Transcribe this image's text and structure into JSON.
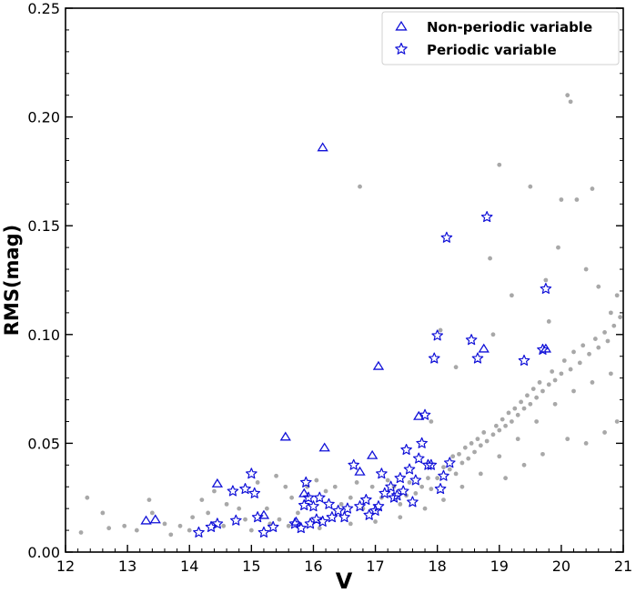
{
  "chart_data": {
    "type": "scatter",
    "xlabel": "V",
    "ylabel": "RMS(mag)",
    "xlim": [
      12,
      21
    ],
    "ylim": [
      0,
      0.25
    ],
    "x_ticks": [
      "12",
      "13",
      "14",
      "15",
      "16",
      "17",
      "18",
      "19",
      "20",
      "21"
    ],
    "y_ticks": [
      "0.00",
      "0.05",
      "0.10",
      "0.15",
      "0.20",
      "0.25"
    ],
    "legend_position": "top-right",
    "grid": false,
    "series": [
      {
        "name": "Non-periodic variable",
        "marker": "triangle",
        "color": "#1010d8",
        "points": [
          [
            13.3,
            0.0145
          ],
          [
            13.45,
            0.015
          ],
          [
            14.45,
            0.0315
          ],
          [
            15.2,
            0.017
          ],
          [
            15.55,
            0.053
          ],
          [
            15.72,
            0.014
          ],
          [
            15.85,
            0.027
          ],
          [
            16.15,
            0.186
          ],
          [
            16.18,
            0.048
          ],
          [
            16.75,
            0.037
          ],
          [
            16.95,
            0.0445
          ],
          [
            17.05,
            0.0855
          ],
          [
            17.7,
            0.0625
          ],
          [
            18.75,
            0.0935
          ],
          [
            19.75,
            0.0935
          ]
        ]
      },
      {
        "name": "Periodic variable",
        "marker": "star",
        "color": "#1010d8",
        "points": [
          [
            14.15,
            0.009
          ],
          [
            14.35,
            0.0115
          ],
          [
            14.45,
            0.013
          ],
          [
            14.7,
            0.028
          ],
          [
            14.75,
            0.0145
          ],
          [
            14.9,
            0.029
          ],
          [
            15.0,
            0.036
          ],
          [
            15.05,
            0.027
          ],
          [
            15.1,
            0.016
          ],
          [
            15.2,
            0.009
          ],
          [
            15.35,
            0.0115
          ],
          [
            15.7,
            0.013
          ],
          [
            15.8,
            0.011
          ],
          [
            15.85,
            0.0215
          ],
          [
            15.88,
            0.032
          ],
          [
            15.92,
            0.025
          ],
          [
            15.95,
            0.013
          ],
          [
            16.0,
            0.021
          ],
          [
            16.05,
            0.015
          ],
          [
            16.1,
            0.025
          ],
          [
            16.15,
            0.014
          ],
          [
            16.25,
            0.022
          ],
          [
            16.3,
            0.016
          ],
          [
            16.4,
            0.019
          ],
          [
            16.5,
            0.016
          ],
          [
            16.55,
            0.02
          ],
          [
            16.65,
            0.04
          ],
          [
            16.75,
            0.021
          ],
          [
            16.85,
            0.024
          ],
          [
            16.9,
            0.017
          ],
          [
            17.0,
            0.019
          ],
          [
            17.05,
            0.021
          ],
          [
            17.1,
            0.036
          ],
          [
            17.15,
            0.027
          ],
          [
            17.25,
            0.03
          ],
          [
            17.3,
            0.025
          ],
          [
            17.35,
            0.026
          ],
          [
            17.4,
            0.034
          ],
          [
            17.45,
            0.028
          ],
          [
            17.5,
            0.047
          ],
          [
            17.55,
            0.038
          ],
          [
            17.6,
            0.023
          ],
          [
            17.65,
            0.033
          ],
          [
            17.7,
            0.043
          ],
          [
            17.75,
            0.05
          ],
          [
            17.8,
            0.063
          ],
          [
            17.85,
            0.04
          ],
          [
            17.9,
            0.04
          ],
          [
            17.95,
            0.089
          ],
          [
            18.0,
            0.0995
          ],
          [
            18.05,
            0.029
          ],
          [
            18.1,
            0.035
          ],
          [
            18.15,
            0.1445
          ],
          [
            18.2,
            0.041
          ],
          [
            18.55,
            0.0975
          ],
          [
            18.65,
            0.089
          ],
          [
            18.8,
            0.154
          ],
          [
            19.4,
            0.088
          ],
          [
            19.7,
            0.093
          ],
          [
            19.75,
            0.121
          ]
        ]
      }
    ],
    "background_series": {
      "name": "",
      "color": "#a8a8a8",
      "marker": "dot",
      "points": [
        [
          12.25,
          0.009
        ],
        [
          12.35,
          0.025
        ],
        [
          12.6,
          0.018
        ],
        [
          12.7,
          0.011
        ],
        [
          12.95,
          0.012
        ],
        [
          13.15,
          0.01
        ],
        [
          13.35,
          0.024
        ],
        [
          13.4,
          0.018
        ],
        [
          13.6,
          0.013
        ],
        [
          13.7,
          0.008
        ],
        [
          13.85,
          0.012
        ],
        [
          14.0,
          0.01
        ],
        [
          14.05,
          0.016
        ],
        [
          14.2,
          0.024
        ],
        [
          14.3,
          0.018
        ],
        [
          14.4,
          0.028
        ],
        [
          14.55,
          0.012
        ],
        [
          14.6,
          0.022
        ],
        [
          14.8,
          0.02
        ],
        [
          14.9,
          0.015
        ],
        [
          15.0,
          0.01
        ],
        [
          15.1,
          0.032
        ],
        [
          15.25,
          0.02
        ],
        [
          15.4,
          0.035
        ],
        [
          15.45,
          0.015
        ],
        [
          15.55,
          0.03
        ],
        [
          15.65,
          0.025
        ],
        [
          15.75,
          0.018
        ],
        [
          15.9,
          0.03
        ],
        [
          16.05,
          0.033
        ],
        [
          16.2,
          0.028
        ],
        [
          16.35,
          0.03
        ],
        [
          16.45,
          0.022
        ],
        [
          16.6,
          0.025
        ],
        [
          16.7,
          0.032
        ],
        [
          16.75,
          0.168
        ],
        [
          16.8,
          0.02
        ],
        [
          16.95,
          0.03
        ],
        [
          17.1,
          0.025
        ],
        [
          17.2,
          0.033
        ],
        [
          17.3,
          0.03
        ],
        [
          17.4,
          0.022
        ],
        [
          17.5,
          0.026
        ],
        [
          17.55,
          0.032
        ],
        [
          17.65,
          0.027
        ],
        [
          17.75,
          0.03
        ],
        [
          17.85,
          0.034
        ],
        [
          17.9,
          0.029
        ],
        [
          18.0,
          0.034
        ],
        [
          18.05,
          0.102
        ],
        [
          18.1,
          0.039
        ],
        [
          18.2,
          0.038
        ],
        [
          18.25,
          0.044
        ],
        [
          18.3,
          0.036
        ],
        [
          18.35,
          0.045
        ],
        [
          18.4,
          0.041
        ],
        [
          18.45,
          0.048
        ],
        [
          18.5,
          0.043
        ],
        [
          18.55,
          0.05
        ],
        [
          18.6,
          0.046
        ],
        [
          18.65,
          0.052
        ],
        [
          18.7,
          0.049
        ],
        [
          18.75,
          0.055
        ],
        [
          18.8,
          0.051
        ],
        [
          18.85,
          0.135
        ],
        [
          18.9,
          0.054
        ],
        [
          18.95,
          0.058
        ],
        [
          19.0,
          0.178
        ],
        [
          19.0,
          0.056
        ],
        [
          19.05,
          0.061
        ],
        [
          19.1,
          0.058
        ],
        [
          19.15,
          0.064
        ],
        [
          19.2,
          0.06
        ],
        [
          19.25,
          0.066
        ],
        [
          19.3,
          0.063
        ],
        [
          19.35,
          0.069
        ],
        [
          19.4,
          0.066
        ],
        [
          19.45,
          0.072
        ],
        [
          19.5,
          0.168
        ],
        [
          19.5,
          0.068
        ],
        [
          19.55,
          0.075
        ],
        [
          19.6,
          0.071
        ],
        [
          19.65,
          0.078
        ],
        [
          19.7,
          0.074
        ],
        [
          19.75,
          0.125
        ],
        [
          19.8,
          0.077
        ],
        [
          19.85,
          0.083
        ],
        [
          19.9,
          0.079
        ],
        [
          19.95,
          0.14
        ],
        [
          20.0,
          0.082
        ],
        [
          20.0,
          0.162
        ],
        [
          20.05,
          0.088
        ],
        [
          20.1,
          0.21
        ],
        [
          20.15,
          0.084
        ],
        [
          20.15,
          0.207
        ],
        [
          20.2,
          0.092
        ],
        [
          20.25,
          0.162
        ],
        [
          20.3,
          0.087
        ],
        [
          20.35,
          0.095
        ],
        [
          20.4,
          0.13
        ],
        [
          20.45,
          0.091
        ],
        [
          20.5,
          0.167
        ],
        [
          20.55,
          0.098
        ],
        [
          20.6,
          0.094
        ],
        [
          20.7,
          0.101
        ],
        [
          20.75,
          0.097
        ],
        [
          20.8,
          0.11
        ],
        [
          20.85,
          0.104
        ],
        [
          20.9,
          0.118
        ],
        [
          20.95,
          0.108
        ],
        [
          15.3,
          0.013
        ],
        [
          15.6,
          0.012
        ],
        [
          16.1,
          0.011
        ],
        [
          16.6,
          0.013
        ],
        [
          17.0,
          0.014
        ],
        [
          17.4,
          0.016
        ],
        [
          17.8,
          0.02
        ],
        [
          18.1,
          0.024
        ],
        [
          18.4,
          0.03
        ],
        [
          18.7,
          0.036
        ],
        [
          19.0,
          0.044
        ],
        [
          19.3,
          0.052
        ],
        [
          19.6,
          0.06
        ],
        [
          19.9,
          0.068
        ],
        [
          20.2,
          0.074
        ],
        [
          20.5,
          0.078
        ],
        [
          20.8,
          0.082
        ],
        [
          17.9,
          0.06
        ],
        [
          18.3,
          0.085
        ],
        [
          18.9,
          0.1
        ],
        [
          19.2,
          0.118
        ],
        [
          19.8,
          0.106
        ],
        [
          20.6,
          0.122
        ],
        [
          20.9,
          0.06
        ],
        [
          20.7,
          0.055
        ],
        [
          20.4,
          0.05
        ],
        [
          20.1,
          0.052
        ],
        [
          19.7,
          0.045
        ],
        [
          19.4,
          0.04
        ],
        [
          19.1,
          0.034
        ]
      ]
    }
  },
  "legend": {
    "items": [
      {
        "label": "Non-periodic variable"
      },
      {
        "label": "Periodic variable"
      }
    ]
  }
}
